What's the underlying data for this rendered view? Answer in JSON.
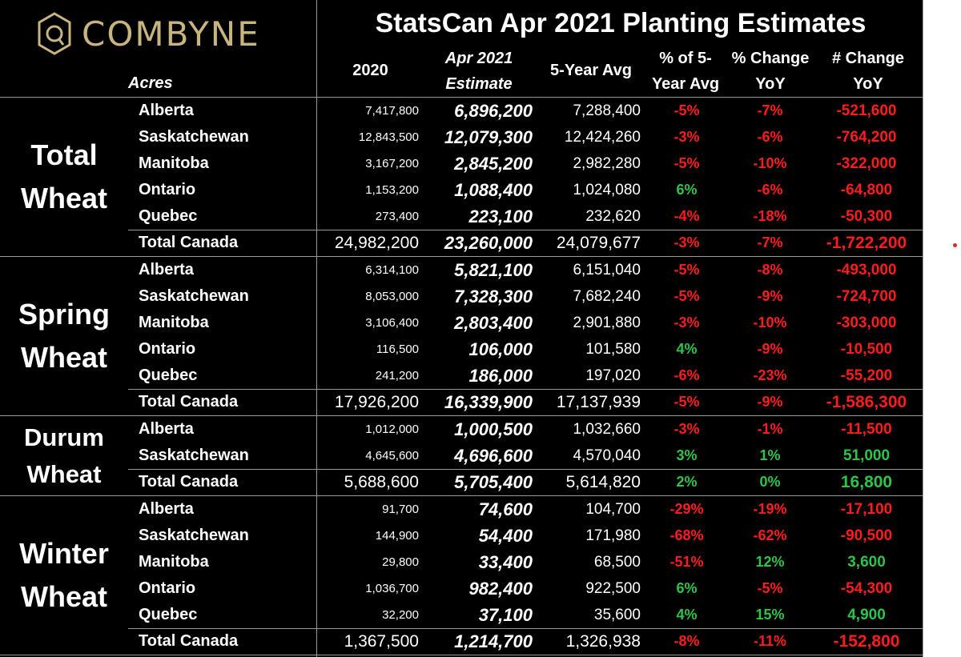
{
  "logo": {
    "text": "COMBYNE"
  },
  "header": {
    "title": "StatsCan Apr 2021 Planting Estimates",
    "acres_label": "Acres",
    "col_2020": "2020",
    "col_est_line1": "Apr 2021",
    "col_est_line2": "Estimate",
    "col_avg": "5-Year Avg",
    "col_pct5_line1": "% of 5-",
    "col_pct5_line2": "Year Avg",
    "col_pcty_line1": "% Change",
    "col_pcty_line2": "YoY",
    "col_numy_line1": "# Change",
    "col_numy_line2": "YoY"
  },
  "groups": [
    {
      "label_line1": "Total",
      "label_line2": "Wheat",
      "rows": [
        {
          "province": "Alberta",
          "y2020": "7,417,800",
          "est": "6,896,200",
          "avg": "7,288,400",
          "pct5": "-5%",
          "pcty": "-7%",
          "numy": "-521,600"
        },
        {
          "province": "Saskatchewan",
          "y2020": "12,843,500",
          "est": "12,079,300",
          "avg": "12,424,260",
          "pct5": "-3%",
          "pcty": "-6%",
          "numy": "-764,200"
        },
        {
          "province": "Manitoba",
          "y2020": "3,167,200",
          "est": "2,845,200",
          "avg": "2,982,280",
          "pct5": "-5%",
          "pcty": "-10%",
          "numy": "-322,000"
        },
        {
          "province": "Ontario",
          "y2020": "1,153,200",
          "est": "1,088,400",
          "avg": "1,024,080",
          "pct5": "6%",
          "pcty": "-6%",
          "numy": "-64,800"
        },
        {
          "province": "Quebec",
          "y2020": "273,400",
          "est": "223,100",
          "avg": "232,620",
          "pct5": "-4%",
          "pcty": "-18%",
          "numy": "-50,300"
        }
      ],
      "total": {
        "province": "Total Canada",
        "y2020": "24,982,200",
        "est": "23,260,000",
        "avg": "24,079,677",
        "pct5": "-3%",
        "pcty": "-7%",
        "numy": "-1,722,200"
      }
    },
    {
      "label_line1": "Spring",
      "label_line2": "Wheat",
      "rows": [
        {
          "province": "Alberta",
          "y2020": "6,314,100",
          "est": "5,821,100",
          "avg": "6,151,040",
          "pct5": "-5%",
          "pcty": "-8%",
          "numy": "-493,000"
        },
        {
          "province": "Saskatchewan",
          "y2020": "8,053,000",
          "est": "7,328,300",
          "avg": "7,682,240",
          "pct5": "-5%",
          "pcty": "-9%",
          "numy": "-724,700"
        },
        {
          "province": "Manitoba",
          "y2020": "3,106,400",
          "est": "2,803,400",
          "avg": "2,901,880",
          "pct5": "-3%",
          "pcty": "-10%",
          "numy": "-303,000"
        },
        {
          "province": "Ontario",
          "y2020": "116,500",
          "est": "106,000",
          "avg": "101,580",
          "pct5": "4%",
          "pcty": "-9%",
          "numy": "-10,500"
        },
        {
          "province": "Quebec",
          "y2020": "241,200",
          "est": "186,000",
          "avg": "197,020",
          "pct5": "-6%",
          "pcty": "-23%",
          "numy": "-55,200"
        }
      ],
      "total": {
        "province": "Total Canada",
        "y2020": "17,926,200",
        "est": "16,339,900",
        "avg": "17,137,939",
        "pct5": "-5%",
        "pcty": "-9%",
        "numy": "-1,586,300"
      }
    },
    {
      "label_line1": "Durum",
      "label_line2": "Wheat",
      "rows": [
        {
          "province": "Alberta",
          "y2020": "1,012,000",
          "est": "1,000,500",
          "avg": "1,032,660",
          "pct5": "-3%",
          "pcty": "-1%",
          "numy": "-11,500"
        },
        {
          "province": "Saskatchewan",
          "y2020": "4,645,600",
          "est": "4,696,600",
          "avg": "4,570,040",
          "pct5": "3%",
          "pcty": "1%",
          "numy": "51,000"
        }
      ],
      "total": {
        "province": "Total Canada",
        "y2020": "5,688,600",
        "est": "5,705,400",
        "avg": "5,614,820",
        "pct5": "2%",
        "pcty": "0%",
        "numy": "16,800"
      }
    },
    {
      "label_line1": "Winter",
      "label_line2": "Wheat",
      "rows": [
        {
          "province": "Alberta",
          "y2020": "91,700",
          "est": "74,600",
          "avg": "104,700",
          "pct5": "-29%",
          "pcty": "-19%",
          "numy": "-17,100"
        },
        {
          "province": "Saskatchewan",
          "y2020": "144,900",
          "est": "54,400",
          "avg": "171,980",
          "pct5": "-68%",
          "pcty": "-62%",
          "numy": "-90,500"
        },
        {
          "province": "Manitoba",
          "y2020": "29,800",
          "est": "33,400",
          "avg": "68,500",
          "pct5": "-51%",
          "pcty": "12%",
          "numy": "3,600"
        },
        {
          "province": "Ontario",
          "y2020": "1,036,700",
          "est": "982,400",
          "avg": "922,500",
          "pct5": "6%",
          "pcty": "-5%",
          "numy": "-54,300"
        },
        {
          "province": "Quebec",
          "y2020": "32,200",
          "est": "37,100",
          "avg": "35,600",
          "pct5": "4%",
          "pcty": "15%",
          "numy": "4,900"
        }
      ],
      "total": {
        "province": "Total Canada",
        "y2020": "1,367,500",
        "est": "1,214,700",
        "avg": "1,326,938",
        "pct5": "-8%",
        "pcty": "-11%",
        "numy": "-152,800"
      }
    }
  ],
  "colors": {
    "negative": "#ff1c1c",
    "positive": "#2ec44a",
    "logo": "#c8b47e",
    "background": "#000000"
  }
}
